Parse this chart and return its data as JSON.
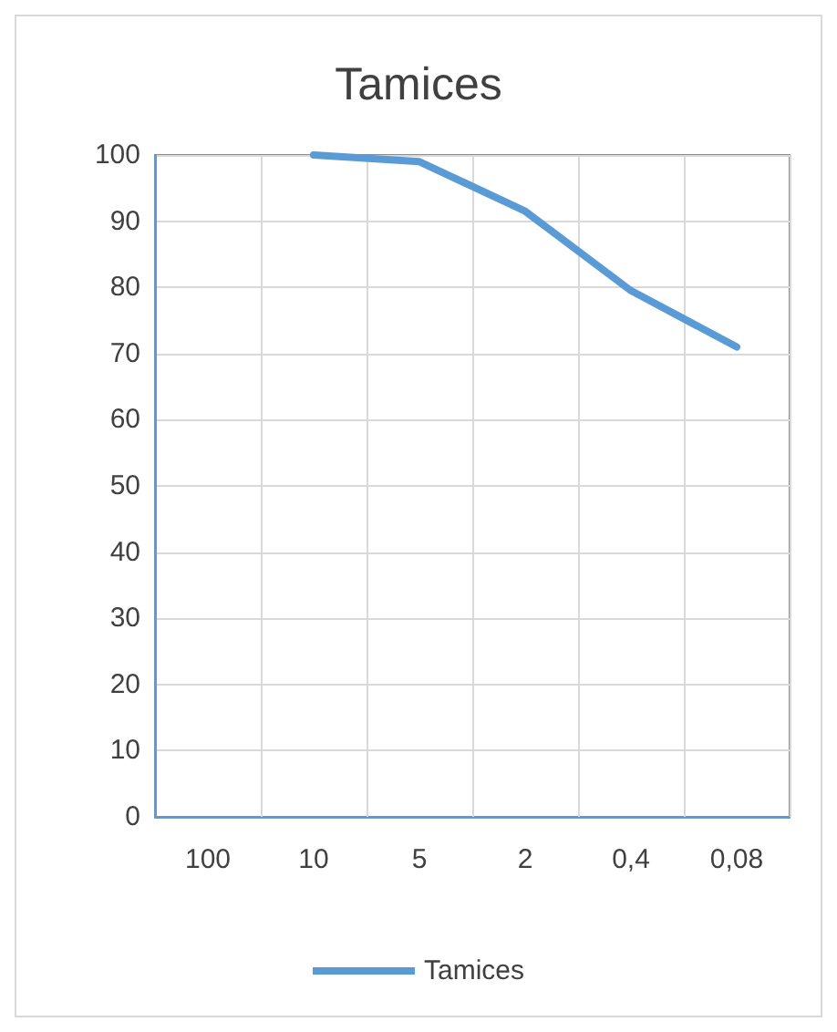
{
  "chart_data": {
    "type": "line",
    "title": "Tamices",
    "categories": [
      "100",
      "10",
      "5",
      "2",
      "0,4",
      "0,08"
    ],
    "series": [
      {
        "name": "Tamices",
        "color": "#5b9bd5",
        "values": [
          null,
          100,
          99,
          91.5,
          79.5,
          71
        ]
      }
    ],
    "ylim": [
      0,
      100
    ],
    "yticks": [
      0,
      10,
      20,
      30,
      40,
      50,
      60,
      70,
      80,
      90,
      100
    ],
    "grid": true,
    "legend": "bottom",
    "marker": "none",
    "line_style": "solid"
  }
}
